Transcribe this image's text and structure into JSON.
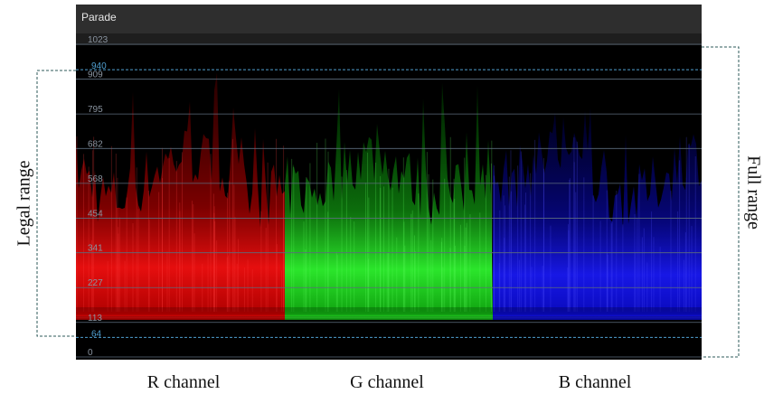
{
  "header": {
    "title": "Parade"
  },
  "scale": {
    "ticks": [
      0,
      113,
      227,
      341,
      454,
      568,
      682,
      795,
      909,
      1023
    ],
    "markers": [
      64,
      940
    ]
  },
  "brackets": {
    "left": "Legal range",
    "right": "Full range"
  },
  "channels": [
    "R channel",
    "G channel",
    "B channel"
  ]
}
